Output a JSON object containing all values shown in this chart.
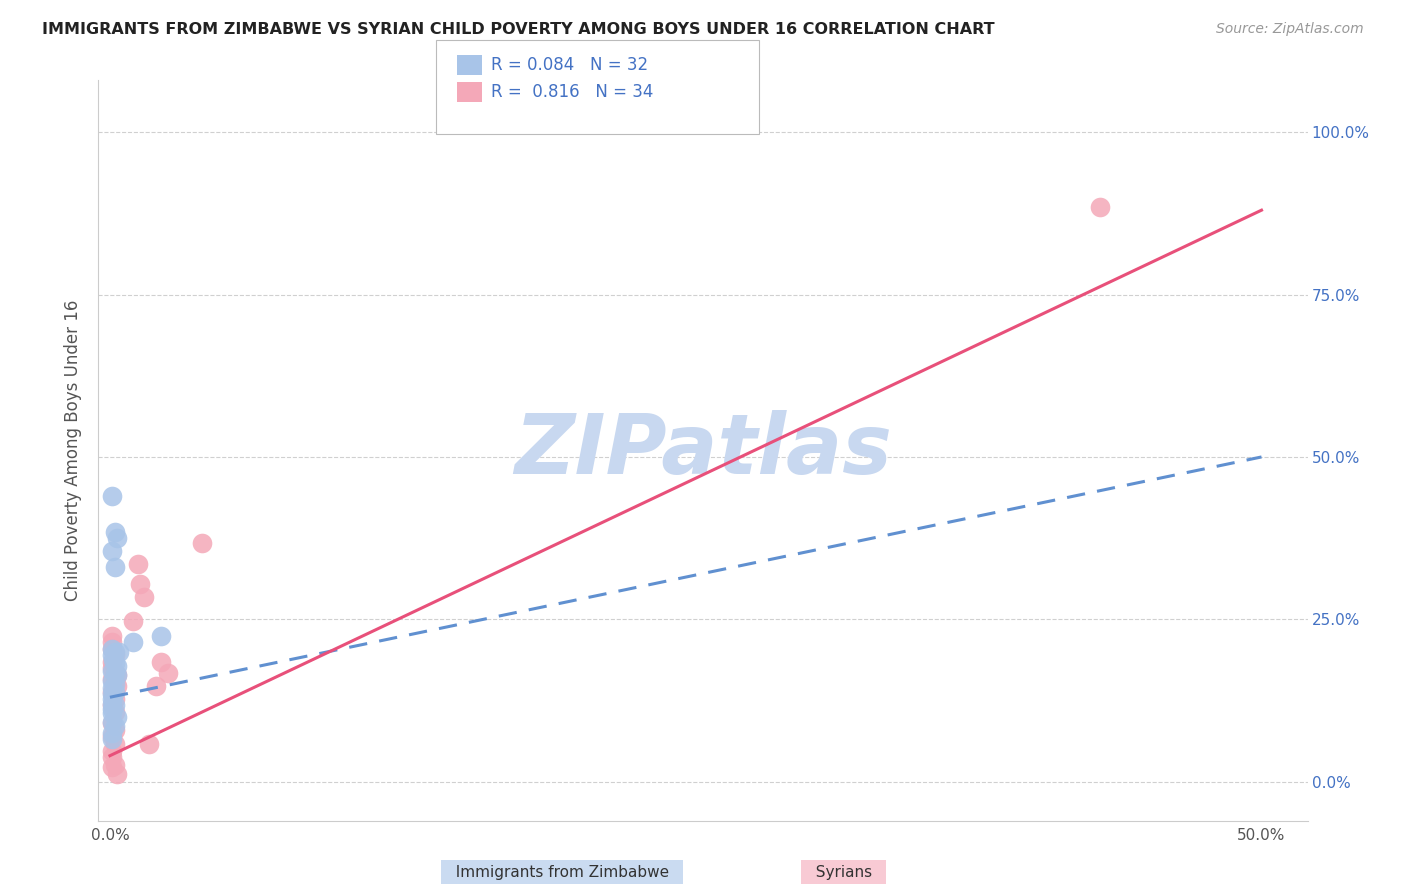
{
  "title": "IMMIGRANTS FROM ZIMBABWE VS SYRIAN CHILD POVERTY AMONG BOYS UNDER 16 CORRELATION CHART",
  "source": "Source: ZipAtlas.com",
  "ylabel": "Child Poverty Among Boys Under 16",
  "x_ticks": [
    0.0,
    0.1,
    0.2,
    0.3,
    0.4,
    0.5
  ],
  "x_tick_labels": [
    "0.0%",
    "",
    "",
    "",
    "",
    "50.0%"
  ],
  "y_ticks": [
    0.0,
    0.25,
    0.5,
    0.75,
    1.0
  ],
  "y_tick_labels_right": [
    "0.0%",
    "25.0%",
    "50.0%",
    "75.0%",
    "100.0%"
  ],
  "xlim": [
    -0.005,
    0.52
  ],
  "ylim": [
    -0.06,
    1.08
  ],
  "background_color": "#ffffff",
  "grid_color": "#d0d0d0",
  "watermark_text": "ZIPatlas",
  "watermark_color": "#c8d8f0",
  "legend_R_zim": "0.084",
  "legend_N_zim": "32",
  "legend_R_syr": "0.816",
  "legend_N_syr": "34",
  "zim_color": "#a8c4e8",
  "syr_color": "#f4a8b8",
  "zim_line_color": "#6090d0",
  "syr_line_color": "#e8507a",
  "zim_trend": [
    0.13,
    0.5
  ],
  "syr_trend": [
    0.04,
    0.88
  ],
  "zim_scatter": [
    [
      0.001,
      0.44
    ],
    [
      0.002,
      0.385
    ],
    [
      0.003,
      0.375
    ],
    [
      0.001,
      0.355
    ],
    [
      0.002,
      0.33
    ],
    [
      0.001,
      0.205
    ],
    [
      0.002,
      0.2
    ],
    [
      0.004,
      0.2
    ],
    [
      0.001,
      0.195
    ],
    [
      0.0015,
      0.188
    ],
    [
      0.002,
      0.183
    ],
    [
      0.003,
      0.178
    ],
    [
      0.001,
      0.17
    ],
    [
      0.002,
      0.168
    ],
    [
      0.003,
      0.165
    ],
    [
      0.001,
      0.155
    ],
    [
      0.002,
      0.15
    ],
    [
      0.001,
      0.145
    ],
    [
      0.002,
      0.138
    ],
    [
      0.001,
      0.135
    ],
    [
      0.001,
      0.128
    ],
    [
      0.001,
      0.12
    ],
    [
      0.002,
      0.118
    ],
    [
      0.001,
      0.112
    ],
    [
      0.001,
      0.105
    ],
    [
      0.003,
      0.1
    ],
    [
      0.001,
      0.092
    ],
    [
      0.002,
      0.085
    ],
    [
      0.001,
      0.075
    ],
    [
      0.001,
      0.065
    ],
    [
      0.01,
      0.215
    ],
    [
      0.022,
      0.225
    ]
  ],
  "syr_scatter": [
    [
      0.001,
      0.225
    ],
    [
      0.001,
      0.215
    ],
    [
      0.001,
      0.205
    ],
    [
      0.002,
      0.195
    ],
    [
      0.001,
      0.185
    ],
    [
      0.001,
      0.175
    ],
    [
      0.002,
      0.168
    ],
    [
      0.003,
      0.165
    ],
    [
      0.001,
      0.158
    ],
    [
      0.002,
      0.155
    ],
    [
      0.003,
      0.148
    ],
    [
      0.001,
      0.138
    ],
    [
      0.002,
      0.128
    ],
    [
      0.001,
      0.118
    ],
    [
      0.002,
      0.108
    ],
    [
      0.001,
      0.09
    ],
    [
      0.002,
      0.08
    ],
    [
      0.001,
      0.07
    ],
    [
      0.002,
      0.058
    ],
    [
      0.001,
      0.048
    ],
    [
      0.001,
      0.038
    ],
    [
      0.002,
      0.025
    ],
    [
      0.001,
      0.022
    ],
    [
      0.003,
      0.012
    ],
    [
      0.01,
      0.248
    ],
    [
      0.012,
      0.335
    ],
    [
      0.013,
      0.305
    ],
    [
      0.015,
      0.285
    ],
    [
      0.017,
      0.058
    ],
    [
      0.02,
      0.148
    ],
    [
      0.022,
      0.185
    ],
    [
      0.025,
      0.168
    ],
    [
      0.04,
      0.368
    ],
    [
      0.43,
      0.885
    ]
  ]
}
